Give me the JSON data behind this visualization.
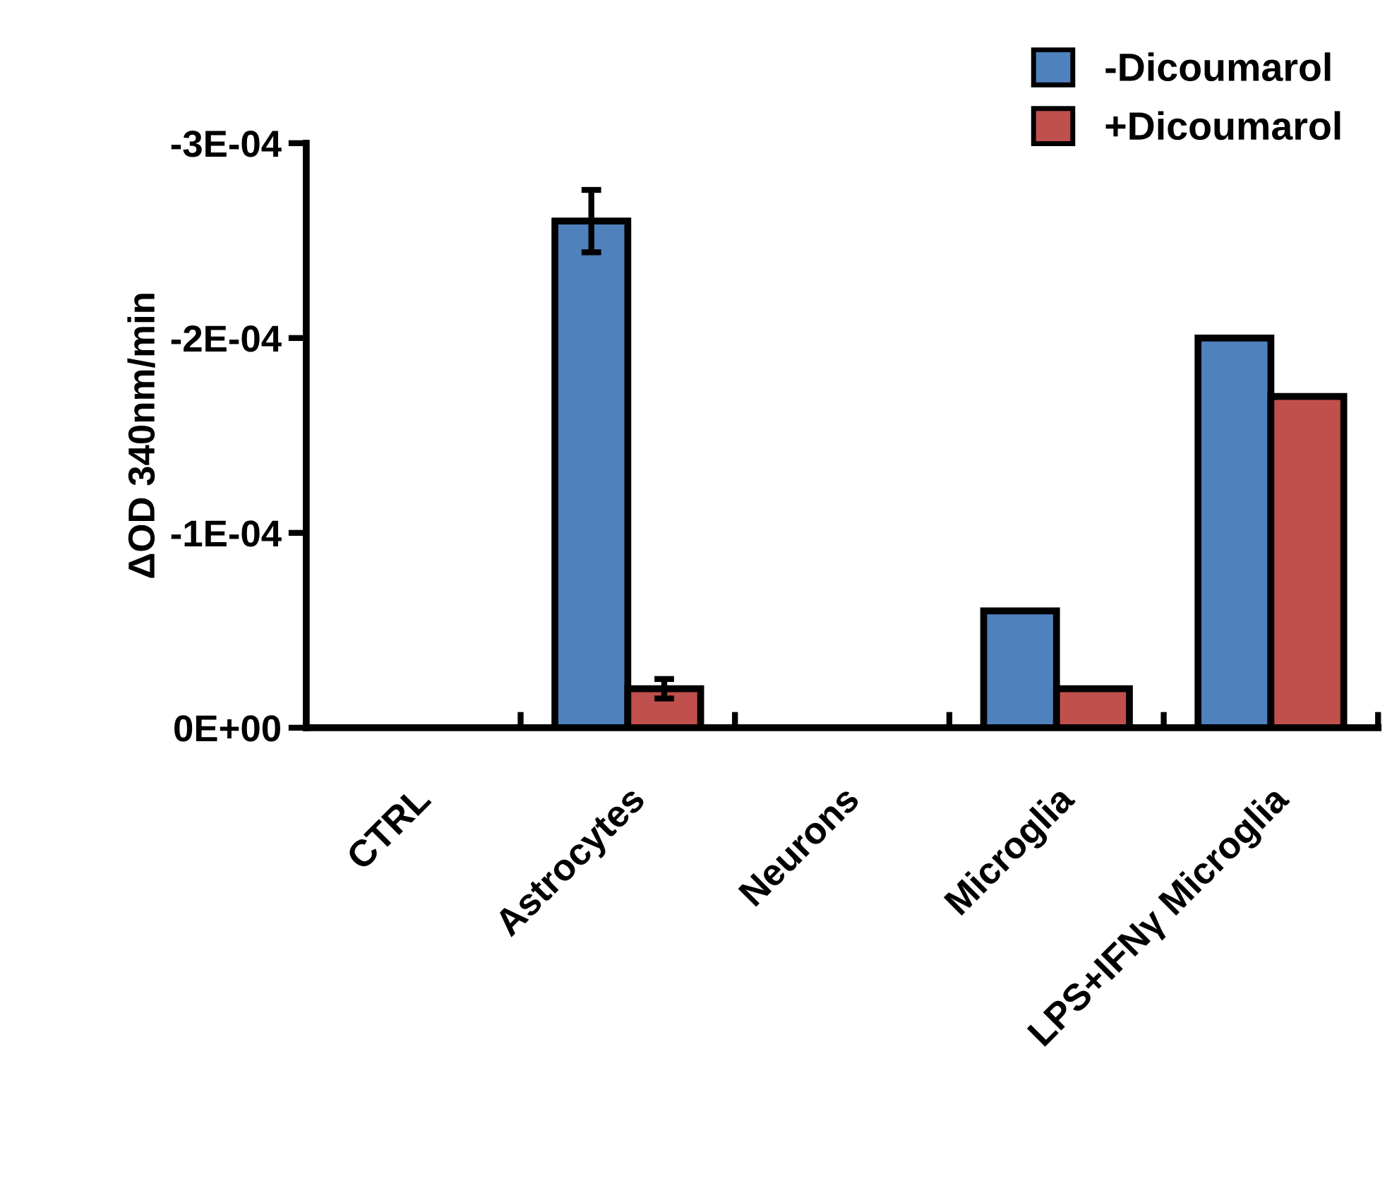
{
  "chart_data": {
    "type": "bar",
    "ylabel": "ΔOD 340nm/min",
    "categories": [
      "CTRL",
      "Astrocytes",
      "Neurons",
      "Microglia",
      "LPS+IFNγ Microglia"
    ],
    "series": [
      {
        "name": "-Dicoumarol",
        "color": "#4f81bd",
        "values": [
          null,
          -0.00026,
          null,
          -6e-05,
          -0.0002
        ],
        "errors": [
          null,
          1.6e-05,
          null,
          null,
          null
        ]
      },
      {
        "name": "+Dicoumarol",
        "color": "#c0504d",
        "values": [
          null,
          -2e-05,
          null,
          -2e-05,
          -0.00017
        ],
        "errors": [
          null,
          5e-06,
          null,
          null,
          null
        ]
      }
    ],
    "ylim": [
      0,
      -0.0003
    ],
    "yticks": [
      {
        "value": 0,
        "label": "0E+00"
      },
      {
        "value": -0.0001,
        "label": "-1E-04"
      },
      {
        "value": -0.0002,
        "label": "-2E-04"
      },
      {
        "value": -0.0003,
        "label": "-3E-04"
      }
    ],
    "grid": false,
    "legend": "top right"
  }
}
